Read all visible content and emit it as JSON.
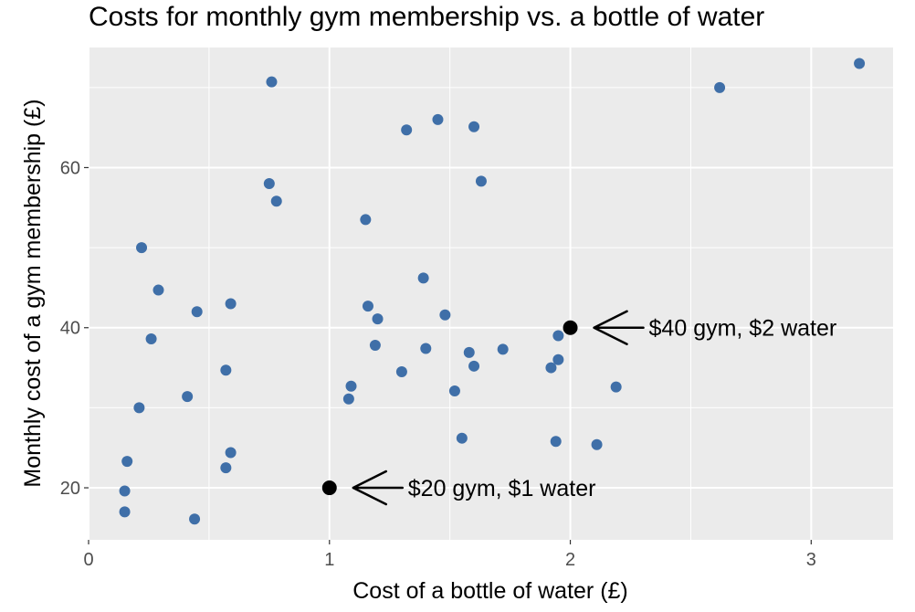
{
  "chart_data": {
    "type": "scatter",
    "title": "Costs for monthly gym membership vs. a bottle of water",
    "xlabel": "Cost of a bottle of water (£)",
    "ylabel": "Monthly cost of a gym membership (£)",
    "xlim": [
      0,
      3.34
    ],
    "ylim": [
      13.5,
      75
    ],
    "x_ticks": [
      0,
      1,
      2,
      3
    ],
    "y_ticks": [
      20,
      40,
      60
    ],
    "grid": true,
    "point_color": "#3f6fa8",
    "highlight_color": "#000000",
    "panel_color": "#ebebeb",
    "points": [
      {
        "x": 0.15,
        "y": 17.0
      },
      {
        "x": 0.15,
        "y": 19.6
      },
      {
        "x": 0.16,
        "y": 23.3
      },
      {
        "x": 0.21,
        "y": 30.0
      },
      {
        "x": 0.22,
        "y": 50.0
      },
      {
        "x": 0.26,
        "y": 38.6
      },
      {
        "x": 0.29,
        "y": 44.7
      },
      {
        "x": 0.41,
        "y": 31.4
      },
      {
        "x": 0.44,
        "y": 16.1
      },
      {
        "x": 0.45,
        "y": 42.0
      },
      {
        "x": 0.57,
        "y": 34.7
      },
      {
        "x": 0.57,
        "y": 22.5
      },
      {
        "x": 0.59,
        "y": 24.4
      },
      {
        "x": 0.59,
        "y": 43.0
      },
      {
        "x": 0.75,
        "y": 58.0
      },
      {
        "x": 0.76,
        "y": 70.7
      },
      {
        "x": 0.78,
        "y": 55.8
      },
      {
        "x": 1.08,
        "y": 31.1
      },
      {
        "x": 1.09,
        "y": 32.7
      },
      {
        "x": 1.15,
        "y": 53.5
      },
      {
        "x": 1.16,
        "y": 42.7
      },
      {
        "x": 1.19,
        "y": 37.8
      },
      {
        "x": 1.2,
        "y": 41.1
      },
      {
        "x": 1.3,
        "y": 34.5
      },
      {
        "x": 1.32,
        "y": 64.7
      },
      {
        "x": 1.39,
        "y": 46.2
      },
      {
        "x": 1.4,
        "y": 37.4
      },
      {
        "x": 1.45,
        "y": 66.0
      },
      {
        "x": 1.48,
        "y": 41.6
      },
      {
        "x": 1.52,
        "y": 32.1
      },
      {
        "x": 1.55,
        "y": 26.2
      },
      {
        "x": 1.58,
        "y": 36.9
      },
      {
        "x": 1.6,
        "y": 65.1
      },
      {
        "x": 1.6,
        "y": 35.2
      },
      {
        "x": 1.63,
        "y": 58.3
      },
      {
        "x": 1.72,
        "y": 37.3
      },
      {
        "x": 1.92,
        "y": 35.0
      },
      {
        "x": 1.94,
        "y": 25.8
      },
      {
        "x": 1.95,
        "y": 39.0
      },
      {
        "x": 1.95,
        "y": 36.0
      },
      {
        "x": 2.11,
        "y": 25.4
      },
      {
        "x": 2.19,
        "y": 32.6
      },
      {
        "x": 2.62,
        "y": 70.0
      },
      {
        "x": 3.2,
        "y": 73.0
      }
    ],
    "highlights": [
      {
        "x": 1,
        "y": 20,
        "label": "$20 gym, $1 water"
      },
      {
        "x": 2,
        "y": 40,
        "label": "$40 gym, $2 water"
      }
    ]
  }
}
